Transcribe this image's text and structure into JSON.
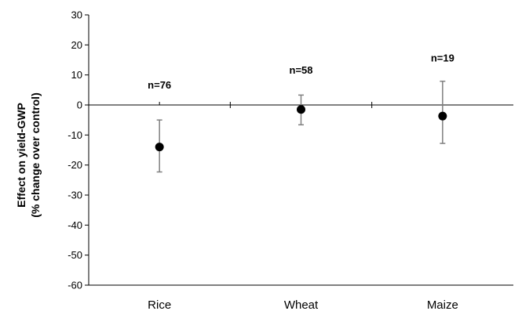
{
  "chart_data": {
    "type": "scatter",
    "title": "",
    "xlabel": "",
    "ylabel_lines": [
      "Effect on yield-GWP",
      "(% change over control)"
    ],
    "categories": [
      "Rice",
      "Wheat",
      "Maize"
    ],
    "series": [
      {
        "values": [
          -14.0,
          -1.5,
          -3.7
        ],
        "error_low": [
          -22.3,
          -6.6,
          -12.8
        ],
        "error_high": [
          -5.0,
          3.3,
          7.9
        ],
        "annotations": [
          "n=76",
          "n=58",
          "n=19"
        ],
        "annotation_y": [
          6.5,
          11.5,
          15.5
        ]
      }
    ],
    "ylim": [
      -60,
      30
    ],
    "yticks": [
      30,
      20,
      10,
      0,
      -10,
      -20,
      -30,
      -40,
      -50,
      -60
    ],
    "ytick_labels": [
      "30",
      "20",
      "10",
      "0",
      "-10",
      "-20",
      "-30",
      "-40",
      "-50",
      "-60"
    ],
    "zero_line": true,
    "grid": false,
    "legend": "none",
    "colors": {
      "point": "#000000",
      "error_bar": "#808080",
      "axis": "#000000"
    }
  }
}
